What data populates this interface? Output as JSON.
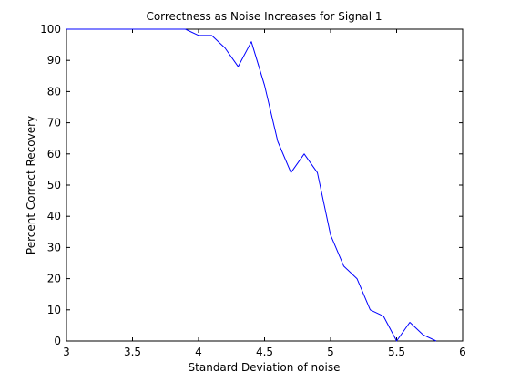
{
  "chart_data": {
    "type": "line",
    "title": "Correctness as Noise Increases for Signal 1",
    "xlabel": "Standard Deviation of noise",
    "ylabel": "Percent Correct Recovery",
    "xlim": [
      3,
      6
    ],
    "ylim": [
      0,
      100
    ],
    "xticks": [
      "3",
      "3.5",
      "4",
      "4.5",
      "5",
      "5.5",
      "6"
    ],
    "yticks": [
      "0",
      "10",
      "20",
      "30",
      "40",
      "50",
      "60",
      "70",
      "80",
      "90",
      "100"
    ],
    "grid": false,
    "line_color": "#0000ff",
    "axis_color": "#000000",
    "series": [
      {
        "x": [
          3.0,
          3.1,
          3.2,
          3.3,
          3.4,
          3.5,
          3.6,
          3.7,
          3.8,
          3.9,
          4.0,
          4.1,
          4.2,
          4.3,
          4.4,
          4.5,
          4.6,
          4.7,
          4.8,
          4.9,
          5.0,
          5.1,
          5.2,
          5.3,
          5.4,
          5.5,
          5.6,
          5.7,
          5.8
        ],
        "y": [
          100,
          100,
          100,
          100,
          100,
          100,
          100,
          100,
          100,
          100,
          98,
          98,
          94,
          88,
          96,
          82,
          64,
          54,
          60,
          54,
          34,
          24,
          20,
          10,
          8,
          0,
          6,
          2,
          0
        ]
      }
    ]
  }
}
